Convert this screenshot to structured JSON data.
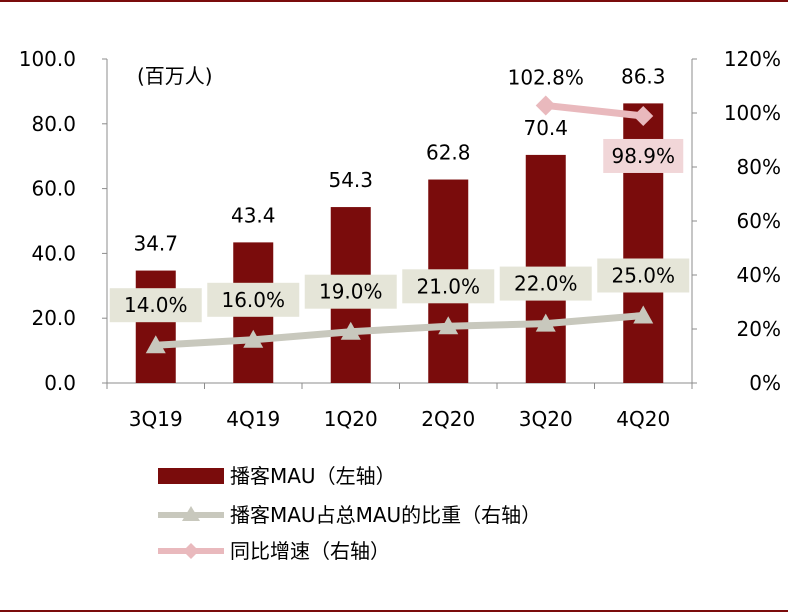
{
  "chart_data": {
    "type": "bar",
    "categories": [
      "3Q19",
      "4Q19",
      "1Q20",
      "2Q20",
      "3Q20",
      "4Q20"
    ],
    "unit_label": "(百万人)",
    "y_left": {
      "ticks": [
        "0.0",
        "20.0",
        "40.0",
        "60.0",
        "80.0",
        "100.0"
      ],
      "ylim": [
        0,
        100
      ]
    },
    "y_right": {
      "ticks": [
        "0%",
        "20%",
        "40%",
        "60%",
        "80%",
        "100%",
        "120%"
      ],
      "ylim": [
        0,
        120
      ]
    },
    "series": [
      {
        "name": "播客MAU（左轴）",
        "type": "bar",
        "axis": "left",
        "color": "#7a0c0c",
        "values": [
          34.7,
          43.4,
          54.3,
          62.8,
          70.4,
          86.3
        ],
        "labels": [
          "34.7",
          "43.4",
          "54.3",
          "62.8",
          "70.4",
          "86.3"
        ]
      },
      {
        "name": "播客MAU占总MAU的比重（右轴）",
        "type": "line",
        "axis": "right",
        "color": "#c8c8bd",
        "marker": "triangle",
        "values": [
          14.0,
          16.0,
          19.0,
          21.0,
          22.0,
          25.0
        ],
        "labels": [
          "14.0%",
          "16.0%",
          "19.0%",
          "21.0%",
          "22.0%",
          "25.0%"
        ]
      },
      {
        "name": "同比增速（右轴）",
        "type": "line",
        "axis": "right",
        "color": "#e9b9bd",
        "marker": "diamond",
        "values": [
          null,
          null,
          null,
          null,
          102.8,
          98.9
        ],
        "labels": [
          null,
          null,
          null,
          null,
          "102.8%",
          "98.9%"
        ]
      }
    ]
  },
  "colors": {
    "border": "#7a0c0c",
    "label_box_gray": "#e5e5d8",
    "label_box_pink": "#f1d6d8"
  }
}
